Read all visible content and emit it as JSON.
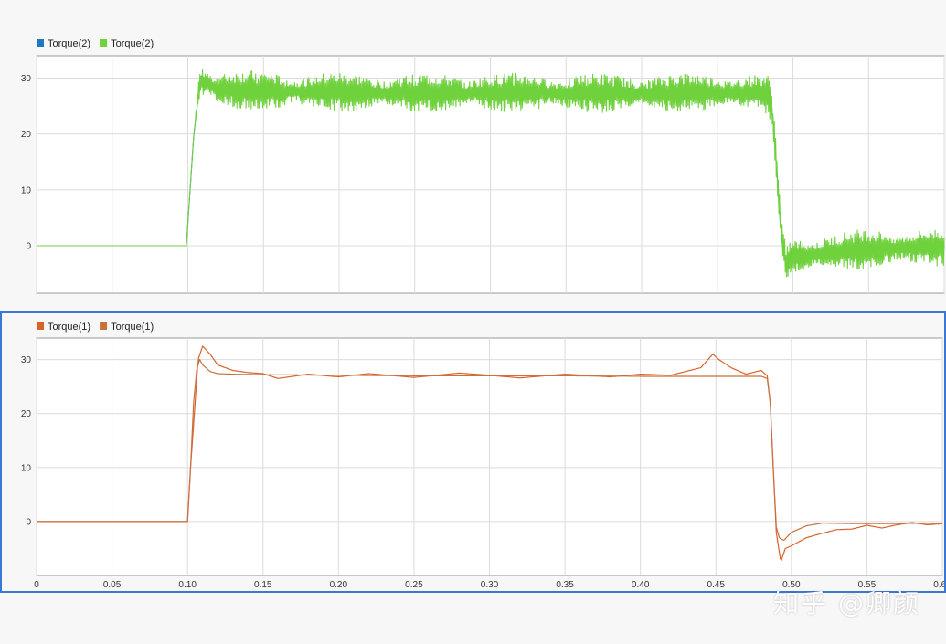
{
  "chart_data": [
    {
      "type": "line",
      "title": "",
      "xlabel": "",
      "ylabel": "",
      "xlim": [
        0,
        0.6
      ],
      "ylim": [
        -8.5,
        34
      ],
      "grid": true,
      "legend": "top-left",
      "xticks": [
        "0",
        "0.05",
        "0.10",
        "0.15",
        "0.20",
        "0.25",
        "0.30",
        "0.35",
        "0.40",
        "0.45",
        "0.50",
        "0.55",
        "0.60"
      ],
      "yticks": [
        "0",
        "10",
        "20",
        "30"
      ],
      "series": [
        {
          "name": "Torque(2)",
          "color": "#1f77c0",
          "x": [
            0,
            0.099,
            0.101,
            0.104,
            0.107,
            0.109,
            0.112,
            0.12,
            0.14,
            0.16,
            0.2,
            0.25,
            0.3,
            0.35,
            0.4,
            0.45,
            0.483,
            0.486,
            0.489,
            0.492,
            0.495,
            0.5,
            0.55,
            0.6
          ],
          "y": [
            0,
            0,
            8,
            20,
            27,
            30,
            29,
            28,
            27.8,
            27.6,
            27.5,
            27.5,
            27.5,
            27.4,
            27.4,
            27.3,
            27.2,
            25,
            15,
            3,
            -3,
            -2,
            -0.5,
            -0.3
          ],
          "noise": 1.2
        },
        {
          "name": "Torque(2)",
          "color": "#6fd13c",
          "x": [
            0,
            0.099,
            0.101,
            0.104,
            0.107,
            0.109,
            0.112,
            0.12,
            0.14,
            0.16,
            0.2,
            0.25,
            0.3,
            0.35,
            0.4,
            0.45,
            0.483,
            0.486,
            0.489,
            0.492,
            0.495,
            0.5,
            0.55,
            0.6
          ],
          "y": [
            0,
            0,
            8,
            20,
            27,
            29.5,
            29,
            28,
            27.8,
            27.6,
            27.5,
            27.3,
            27.4,
            27.3,
            27.2,
            27.4,
            27.2,
            25,
            15,
            3,
            -3,
            -2,
            -0.5,
            -0.3
          ],
          "noise": 3.5
        }
      ]
    },
    {
      "type": "line",
      "title": "",
      "xlabel": "",
      "ylabel": "",
      "xlim": [
        0,
        0.6
      ],
      "ylim": [
        -10,
        34
      ],
      "grid": true,
      "legend": "top-left",
      "xticks": [
        "0",
        "0.05",
        "0.10",
        "0.15",
        "0.20",
        "0.25",
        "0.30",
        "0.35",
        "0.40",
        "0.45",
        "0.50",
        "0.55",
        "0.60"
      ],
      "yticks": [
        "0",
        "10",
        "20",
        "30"
      ],
      "series": [
        {
          "name": "Torque(1)",
          "color": "#d9622b",
          "x": [
            0,
            0.1,
            0.102,
            0.105,
            0.107,
            0.11,
            0.115,
            0.12,
            0.13,
            0.14,
            0.15,
            0.16,
            0.18,
            0.2,
            0.22,
            0.25,
            0.28,
            0.3,
            0.32,
            0.35,
            0.38,
            0.4,
            0.42,
            0.44,
            0.448,
            0.452,
            0.46,
            0.47,
            0.48,
            0.484,
            0.486,
            0.488,
            0.49,
            0.493,
            0.496,
            0.5,
            0.51,
            0.52,
            0.53,
            0.54,
            0.55,
            0.56,
            0.57,
            0.58,
            0.59,
            0.6
          ],
          "y": [
            0,
            0,
            10,
            22,
            30,
            32.5,
            31,
            29,
            28,
            27.6,
            27.4,
            26.5,
            27.3,
            26.8,
            27.4,
            26.7,
            27.5,
            27.1,
            26.6,
            27.3,
            26.8,
            27.3,
            27.1,
            28.5,
            31,
            30,
            28.5,
            27.3,
            28,
            27,
            22,
            10,
            -2,
            -7.5,
            -5,
            -4.5,
            -3,
            -2.2,
            -1.5,
            -1.4,
            -0.7,
            -1.2,
            -0.6,
            -0.2,
            -0.6,
            -0.4
          ]
        },
        {
          "name": "Torque(1)",
          "color": "#c8713e",
          "x": [
            0,
            0.1,
            0.102,
            0.104,
            0.106,
            0.108,
            0.11,
            0.115,
            0.12,
            0.13,
            0.15,
            0.2,
            0.25,
            0.3,
            0.35,
            0.4,
            0.45,
            0.48,
            0.484,
            0.486,
            0.488,
            0.49,
            0.492,
            0.495,
            0.5,
            0.51,
            0.52,
            0.55,
            0.6
          ],
          "y": [
            0,
            0,
            10,
            22,
            28,
            30,
            29,
            27.8,
            27.4,
            27.3,
            27.2,
            27.1,
            27.0,
            27.0,
            27.0,
            26.9,
            26.9,
            26.9,
            26.5,
            22,
            10,
            -1,
            -3,
            -3.5,
            -2,
            -0.8,
            -0.3,
            -0.4,
            -0.3
          ]
        }
      ]
    }
  ],
  "watermark": "知乎 @卿颜"
}
